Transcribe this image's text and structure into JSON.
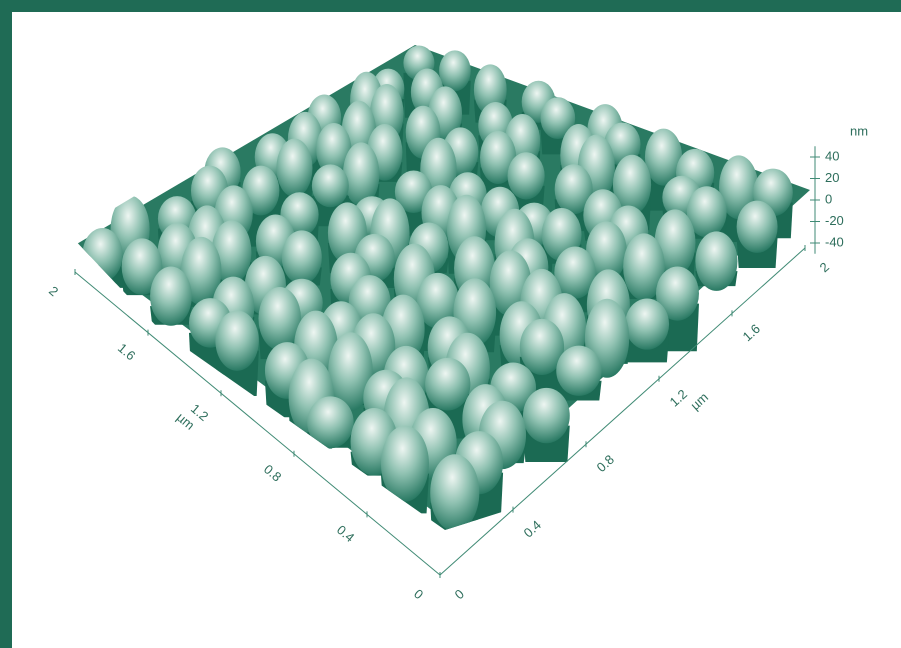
{
  "chart_data": {
    "type": "surface3d",
    "color": "#1e7a62",
    "x_axis": {
      "label": "µm",
      "lim": [
        0,
        2
      ],
      "ticks": [
        0,
        0.4,
        0.8,
        1.2,
        1.6,
        2
      ]
    },
    "y_axis": {
      "label": "µm",
      "lim": [
        0,
        2
      ],
      "ticks": [
        0,
        0.4,
        0.8,
        1.2,
        1.6,
        2
      ]
    },
    "z_axis": {
      "label": "nm",
      "lim": [
        -50,
        50
      ],
      "ticks": [
        40,
        20,
        0,
        -20,
        -40
      ]
    }
  }
}
